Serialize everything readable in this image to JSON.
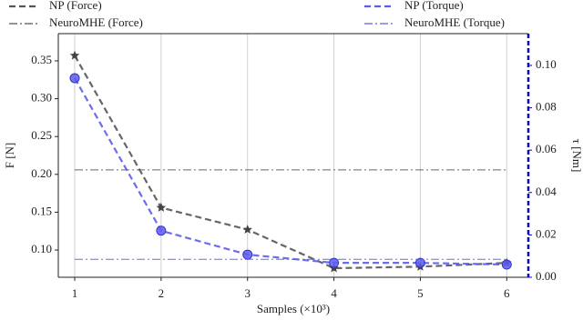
{
  "chart_data": {
    "type": "line",
    "x_label": "Samples (×10³)",
    "y_label": "F [N]",
    "y2_label": "τ [Nm]",
    "x": [
      1,
      2,
      3,
      4,
      5,
      6
    ],
    "xlim": [
      0.81,
      6.25
    ],
    "xticks": [
      1,
      2,
      3,
      4,
      5,
      6
    ],
    "ylim": [
      0.064,
      0.386
    ],
    "yticks": [
      {
        "value": 0.1,
        "label": "0.10"
      },
      0.15,
      {
        "value": 0.2,
        "label": "0.20"
      },
      0.25,
      {
        "value": 0.3,
        "label": "0.30"
      },
      0.35
    ],
    "y2lim": [
      0,
      0.115
    ],
    "y2ticks": [
      {
        "value": 0,
        "label": "0.00"
      },
      0.02,
      0.04,
      0.06,
      0.08,
      {
        "value": 0.1,
        "label": "0.10"
      }
    ],
    "grid": true,
    "y2_color": "#0000ee",
    "series": [
      {
        "name": "NP (Force)",
        "color": "#555555",
        "dash": "dashed",
        "marker": "star",
        "values": [
          0.357,
          0.156,
          0.127,
          0.076,
          0.078,
          0.083
        ]
      },
      {
        "name": "NeuroMHE (Force)",
        "color": "#555555",
        "dash": "dashdot",
        "marker": "none",
        "values": [
          0.206,
          0.206,
          0.206,
          0.206,
          0.206,
          0.206
        ]
      },
      {
        "name": "NP (Torque)",
        "color": "#5c5cf0",
        "dash": "dashed",
        "marker": "circle",
        "axis": "y2",
        "values": [
          0.094,
          0.022,
          0.0107,
          0.0068,
          0.0068,
          0.006
        ]
      },
      {
        "name": "NeuroMHE (Torque)",
        "color": "#5c5cf0",
        "dash": "dashdot",
        "marker": "none",
        "axis": "y2",
        "values": [
          0.0085,
          0.0085,
          0.0085,
          0.0085,
          0.0085,
          0.0085
        ]
      }
    ]
  }
}
